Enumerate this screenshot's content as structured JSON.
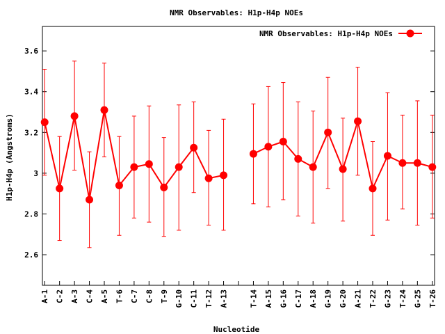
{
  "chart_data": {
    "type": "line",
    "title": "NMR Observables: H1p-H4p NOEs",
    "xlabel": "Nucleotide",
    "ylabel": "H1p-H4p (Angstroms)",
    "legend": {
      "label": "NMR Observables: H1p-H4p NOEs",
      "placement": "top-right"
    },
    "ylim": [
      2.45,
      3.72
    ],
    "yticks": [
      2.6,
      2.8,
      3,
      3.2,
      3.4,
      3.6
    ],
    "ytick_labels": [
      "2.6",
      "2.8",
      "3",
      "3.2",
      "3.4",
      "3.6"
    ],
    "xlim": [
      0.85,
      27.15
    ],
    "grid": false,
    "series": [
      {
        "name": "NMR Observables: H1p-H4p NOEs",
        "color": "#ff0000",
        "points": [
          {
            "x": 1,
            "label": "A-1",
            "y": 3.25,
            "low": 2.99,
            "high": 3.51
          },
          {
            "x": 2,
            "label": "C-2",
            "y": 2.925,
            "low": 2.67,
            "high": 3.18
          },
          {
            "x": 3,
            "label": "A-3",
            "y": 3.28,
            "low": 3.015,
            "high": 3.55
          },
          {
            "x": 4,
            "label": "C-4",
            "y": 2.87,
            "low": 2.635,
            "high": 3.105
          },
          {
            "x": 5,
            "label": "A-5",
            "y": 3.31,
            "low": 3.08,
            "high": 3.54
          },
          {
            "x": 6,
            "label": "T-6",
            "y": 2.94,
            "low": 2.695,
            "high": 3.18
          },
          {
            "x": 7,
            "label": "C-7",
            "y": 3.03,
            "low": 2.78,
            "high": 3.28
          },
          {
            "x": 8,
            "label": "C-8",
            "y": 3.045,
            "low": 2.76,
            "high": 3.33
          },
          {
            "x": 9,
            "label": "T-9",
            "y": 2.93,
            "low": 2.69,
            "high": 3.175
          },
          {
            "x": 10,
            "label": "G-10",
            "y": 3.03,
            "low": 2.72,
            "high": 3.335
          },
          {
            "x": 11,
            "label": "C-11",
            "y": 3.125,
            "low": 2.905,
            "high": 3.35
          },
          {
            "x": 12,
            "label": "T-12",
            "y": 2.975,
            "low": 2.745,
            "high": 3.21
          },
          {
            "x": 13,
            "label": "A-13",
            "y": 2.99,
            "low": 2.72,
            "high": 3.265
          },
          {
            "x": 14,
            "label": "",
            "y": null,
            "low": null,
            "high": null
          },
          {
            "x": 15,
            "label": "T-14",
            "y": 3.095,
            "low": 2.85,
            "high": 3.34
          },
          {
            "x": 16,
            "label": "A-15",
            "y": 3.13,
            "low": 2.835,
            "high": 3.425
          },
          {
            "x": 17,
            "label": "G-16",
            "y": 3.155,
            "low": 2.87,
            "high": 3.445
          },
          {
            "x": 18,
            "label": "C-17",
            "y": 3.07,
            "low": 2.79,
            "high": 3.35
          },
          {
            "x": 19,
            "label": "A-18",
            "y": 3.03,
            "low": 2.755,
            "high": 3.305
          },
          {
            "x": 20,
            "label": "G-19",
            "y": 3.2,
            "low": 2.925,
            "high": 3.47
          },
          {
            "x": 21,
            "label": "G-20",
            "y": 3.02,
            "low": 2.765,
            "high": 3.27
          },
          {
            "x": 22,
            "label": "A-21",
            "y": 3.255,
            "low": 2.99,
            "high": 3.52
          },
          {
            "x": 23,
            "label": "T-22",
            "y": 2.925,
            "low": 2.695,
            "high": 3.155
          },
          {
            "x": 24,
            "label": "G-23",
            "y": 3.085,
            "low": 2.77,
            "high": 3.395
          },
          {
            "x": 25,
            "label": "T-24",
            "y": 3.05,
            "low": 2.825,
            "high": 3.285
          },
          {
            "x": 26,
            "label": "G-25",
            "y": 3.05,
            "low": 2.745,
            "high": 3.355
          },
          {
            "x": 27,
            "label": "T-26",
            "y": 3.03,
            "low": 2.78,
            "high": 3.285
          }
        ]
      }
    ]
  }
}
